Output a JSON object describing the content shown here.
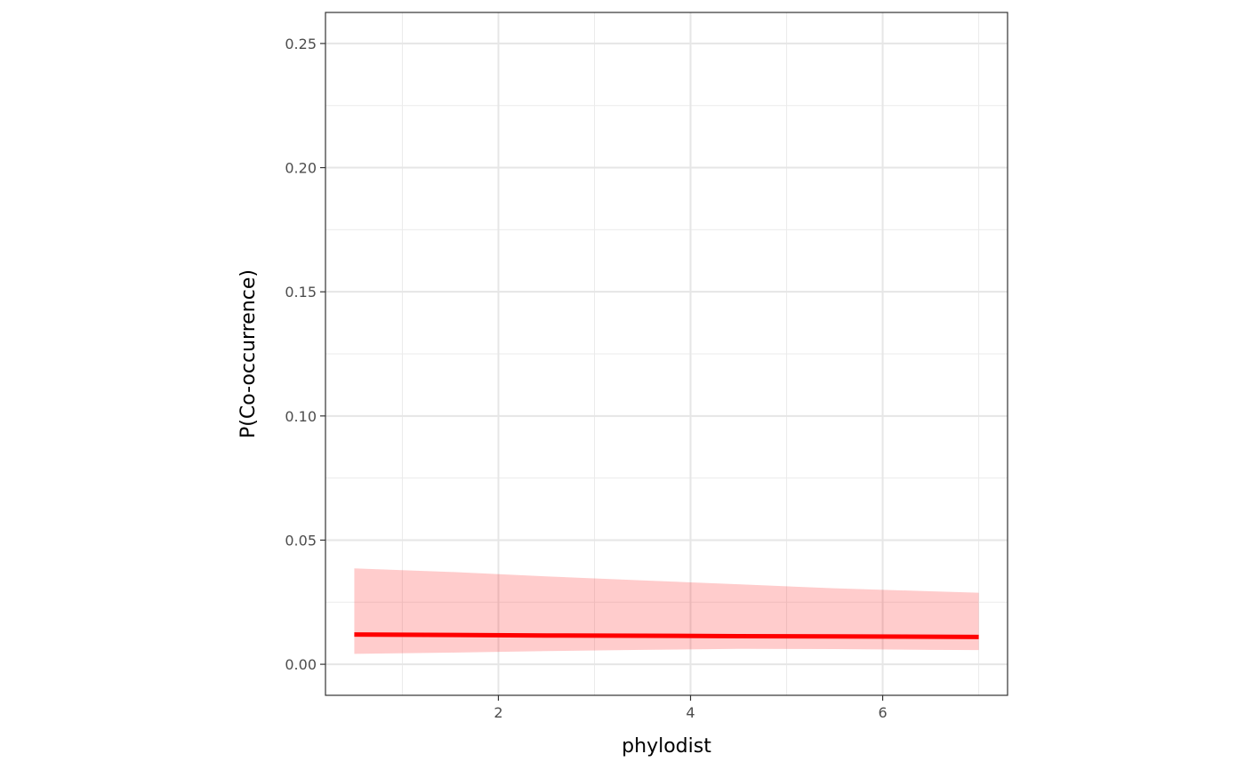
{
  "chart_data": {
    "type": "line",
    "title": "",
    "xlabel": "phylodist",
    "ylabel": "P(Co-occurrence)",
    "xlim": [
      0.2,
      7.3
    ],
    "ylim": [
      -0.0125,
      0.2625
    ],
    "x_ticks": [
      2,
      4,
      6
    ],
    "x_tick_labels": [
      "2",
      "4",
      "6"
    ],
    "y_ticks": [
      0,
      0.05,
      0.1,
      0.15,
      0.2,
      0.25
    ],
    "y_tick_labels": [
      "0.00",
      "0.05",
      "0.10",
      "0.15",
      "0.20",
      "0.25"
    ],
    "grid": true,
    "legend": "none",
    "series": [
      {
        "x": [
          0.5,
          1.5,
          2.5,
          3.5,
          4.5,
          5.5,
          6.5,
          7.0
        ],
        "y": [
          0.012,
          0.0118,
          0.0116,
          0.0115,
          0.0113,
          0.0112,
          0.0111,
          0.011
        ],
        "lower": [
          0.0042,
          0.0047,
          0.0053,
          0.0058,
          0.0062,
          0.0061,
          0.0058,
          0.0057
        ],
        "upper": [
          0.0386,
          0.0372,
          0.0354,
          0.0338,
          0.0322,
          0.0306,
          0.0294,
          0.0288
        ],
        "color": "#ff0000",
        "ribbon_color": "#ff0000",
        "ribbon_opacity": 0.2
      }
    ]
  }
}
